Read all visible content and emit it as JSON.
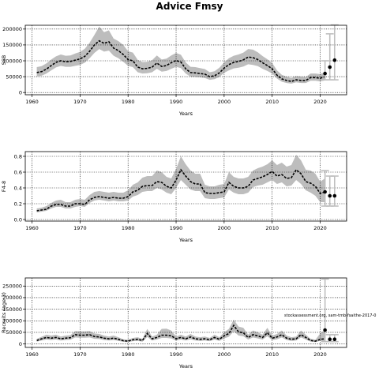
{
  "title": "Advice Fmsy",
  "credit": "stockassessment.org, sam-tmb-fsaithe-2017-0",
  "colors": {
    "band": "#bdbdbd",
    "line": "#000000",
    "advice": "#bfbfbf"
  },
  "chart_data": [
    {
      "type": "line",
      "name": "ssb-panel",
      "ylabel": "SSB",
      "xlabel": "Years",
      "xlim": [
        1958.6,
        2025.5
      ],
      "ylim": [
        -7000,
        212000
      ],
      "xticks": [
        1960,
        1970,
        1980,
        1990,
        2000,
        2010,
        2020
      ],
      "yticks": [
        0,
        50000,
        100000,
        150000,
        200000
      ],
      "ytick_labels": [
        "0",
        "50000",
        "100000",
        "150000",
        "200000"
      ],
      "grid": true,
      "series": {
        "x": [
          1961,
          1962,
          1963,
          1964,
          1965,
          1966,
          1967,
          1968,
          1969,
          1970,
          1971,
          1972,
          1973,
          1974,
          1975,
          1976,
          1977,
          1978,
          1979,
          1980,
          1981,
          1982,
          1983,
          1984,
          1985,
          1986,
          1987,
          1988,
          1989,
          1990,
          1991,
          1992,
          1993,
          1994,
          1995,
          1996,
          1997,
          1998,
          1999,
          2000,
          2001,
          2002,
          2003,
          2004,
          2005,
          2006,
          2007,
          2008,
          2009,
          2010,
          2011,
          2012,
          2013,
          2014,
          2015,
          2016,
          2017,
          2018,
          2019,
          2020,
          2021
        ],
        "y": [
          63000,
          66000,
          74000,
          85000,
          95000,
          100000,
          97000,
          98000,
          102000,
          106000,
          114000,
          130000,
          150000,
          163000,
          155000,
          160000,
          140000,
          132000,
          120000,
          104000,
          100000,
          80000,
          75000,
          76000,
          80000,
          93000,
          82000,
          85000,
          94000,
          101000,
          96000,
          75000,
          63000,
          62000,
          60000,
          58000,
          50000,
          53000,
          62000,
          77000,
          88000,
          95000,
          98000,
          103000,
          112000,
          110000,
          104000,
          94000,
          85000,
          75000,
          55000,
          43000,
          38000,
          35000,
          40000,
          38000,
          38000,
          47000,
          47000,
          45000,
          50000
        ],
        "lower": [
          51000,
          53000,
          60000,
          70000,
          79000,
          84000,
          81000,
          81000,
          84000,
          87000,
          94000,
          108000,
          125000,
          137000,
          129000,
          132000,
          116000,
          108000,
          97000,
          84000,
          80000,
          64000,
          60000,
          61000,
          64000,
          75000,
          66000,
          68000,
          75000,
          81000,
          77000,
          60000,
          50000,
          49000,
          48000,
          46000,
          40000,
          42000,
          49000,
          62000,
          70000,
          76000,
          78000,
          82000,
          89000,
          87000,
          83000,
          75000,
          68000,
          60000,
          44000,
          34000,
          30000,
          28000,
          32000,
          30000,
          30000,
          37000,
          37000,
          35000,
          38000
        ],
        "upper": [
          80000,
          83000,
          92000,
          104000,
          114000,
          120000,
          116000,
          117000,
          123000,
          128000,
          138000,
          157000,
          182000,
          208000,
          190000,
          196000,
          170000,
          162000,
          150000,
          130000,
          126000,
          103000,
          96000,
          97000,
          102000,
          117000,
          104000,
          107000,
          117000,
          125000,
          119000,
          95000,
          81000,
          80000,
          77000,
          74000,
          64000,
          67000,
          78000,
          95000,
          108000,
          116000,
          120000,
          126000,
          137000,
          135000,
          127000,
          115000,
          105000,
          93000,
          70000,
          56000,
          50000,
          46000,
          52000,
          50000,
          49000,
          60000,
          60000,
          58000,
          64000
        ]
      },
      "advice": [
        {
          "x": 2021,
          "y": 60000,
          "lower": 40000,
          "upper": 100000
        },
        {
          "x": 2022,
          "y": 80000,
          "lower": 40000,
          "upper": 185000
        },
        {
          "x": 2023,
          "y": 102000,
          "lower": 40000,
          "upper": 213000
        }
      ]
    },
    {
      "type": "line",
      "name": "f-panel",
      "ylabel": "F4-8",
      "xlabel": "Years",
      "xlim": [
        1958.6,
        2025.5
      ],
      "ylim": [
        -0.02,
        0.86
      ],
      "xticks": [
        1960,
        1970,
        1980,
        1990,
        2000,
        2010,
        2020
      ],
      "yticks": [
        0,
        0.2,
        0.4,
        0.6,
        0.8
      ],
      "ytick_labels": [
        "0.0",
        "0.2",
        "0.4",
        "0.6",
        "0.8"
      ],
      "grid": true,
      "series": {
        "x": [
          1961,
          1962,
          1963,
          1964,
          1965,
          1966,
          1967,
          1968,
          1969,
          1970,
          1971,
          1972,
          1973,
          1974,
          1975,
          1976,
          1977,
          1978,
          1979,
          1980,
          1981,
          1982,
          1983,
          1984,
          1985,
          1986,
          1987,
          1988,
          1989,
          1990,
          1991,
          1992,
          1993,
          1994,
          1995,
          1996,
          1997,
          1998,
          1999,
          2000,
          2001,
          2002,
          2003,
          2004,
          2005,
          2006,
          2007,
          2008,
          2009,
          2010,
          2011,
          2012,
          2013,
          2014,
          2015,
          2016,
          2017,
          2018,
          2019,
          2020,
          2021
        ],
        "y": [
          0.11,
          0.12,
          0.13,
          0.17,
          0.19,
          0.19,
          0.17,
          0.17,
          0.2,
          0.2,
          0.19,
          0.25,
          0.28,
          0.29,
          0.28,
          0.27,
          0.28,
          0.27,
          0.27,
          0.29,
          0.35,
          0.37,
          0.42,
          0.43,
          0.43,
          0.48,
          0.47,
          0.42,
          0.4,
          0.5,
          0.63,
          0.55,
          0.48,
          0.45,
          0.45,
          0.34,
          0.33,
          0.33,
          0.34,
          0.35,
          0.47,
          0.42,
          0.4,
          0.4,
          0.42,
          0.5,
          0.52,
          0.54,
          0.57,
          0.61,
          0.55,
          0.57,
          0.52,
          0.53,
          0.63,
          0.58,
          0.48,
          0.46,
          0.42,
          0.33,
          0.35
        ],
        "lower": [
          0.09,
          0.1,
          0.11,
          0.14,
          0.16,
          0.16,
          0.14,
          0.14,
          0.16,
          0.17,
          0.16,
          0.21,
          0.24,
          0.25,
          0.24,
          0.23,
          0.24,
          0.23,
          0.23,
          0.24,
          0.29,
          0.31,
          0.35,
          0.36,
          0.36,
          0.4,
          0.38,
          0.34,
          0.32,
          0.4,
          0.5,
          0.44,
          0.38,
          0.36,
          0.36,
          0.27,
          0.26,
          0.26,
          0.27,
          0.28,
          0.38,
          0.34,
          0.32,
          0.32,
          0.34,
          0.41,
          0.43,
          0.44,
          0.47,
          0.5,
          0.45,
          0.47,
          0.42,
          0.43,
          0.5,
          0.45,
          0.37,
          0.34,
          0.3,
          0.22,
          0.22
        ],
        "upper": [
          0.14,
          0.15,
          0.17,
          0.21,
          0.24,
          0.25,
          0.22,
          0.22,
          0.25,
          0.26,
          0.25,
          0.31,
          0.35,
          0.36,
          0.35,
          0.34,
          0.35,
          0.34,
          0.34,
          0.37,
          0.44,
          0.47,
          0.53,
          0.55,
          0.55,
          0.62,
          0.6,
          0.54,
          0.52,
          0.64,
          0.8,
          0.7,
          0.62,
          0.58,
          0.58,
          0.44,
          0.42,
          0.42,
          0.44,
          0.45,
          0.6,
          0.54,
          0.52,
          0.52,
          0.54,
          0.62,
          0.65,
          0.67,
          0.7,
          0.75,
          0.69,
          0.72,
          0.67,
          0.69,
          0.82,
          0.75,
          0.63,
          0.62,
          0.58,
          0.48,
          0.52
        ]
      },
      "advice": [
        {
          "x": 2021,
          "y": 0.35,
          "lower": 0.17,
          "upper": 0.62
        },
        {
          "x": 2022,
          "y": 0.3,
          "lower": 0.17,
          "upper": 0.55
        },
        {
          "x": 2023,
          "y": 0.3,
          "lower": 0.17,
          "upper": 0.55
        }
      ]
    },
    {
      "type": "line",
      "name": "recruits-panel",
      "ylabel": "Recruits (age 3)",
      "xlabel": "Years",
      "xlim": [
        1958.6,
        2025.5
      ],
      "ylim": [
        -15000,
        285000
      ],
      "xticks": [
        1960,
        1970,
        1980,
        1990,
        2000,
        2010,
        2020
      ],
      "yticks": [
        0,
        50000,
        100000,
        150000,
        200000,
        250000
      ],
      "ytick_labels": [
        "0",
        "50000",
        "100000",
        "150000",
        "200000",
        "250000"
      ],
      "grid": true,
      "series": {
        "x": [
          1961,
          1962,
          1963,
          1964,
          1965,
          1966,
          1967,
          1968,
          1969,
          1970,
          1971,
          1972,
          1973,
          1974,
          1975,
          1976,
          1977,
          1978,
          1979,
          1980,
          1981,
          1982,
          1983,
          1984,
          1985,
          1986,
          1987,
          1988,
          1989,
          1990,
          1991,
          1992,
          1993,
          1994,
          1995,
          1996,
          1997,
          1998,
          1999,
          2000,
          2001,
          2002,
          2003,
          2004,
          2005,
          2006,
          2007,
          2008,
          2009,
          2010,
          2011,
          2012,
          2013,
          2014,
          2015,
          2016,
          2017,
          2018,
          2019,
          2020,
          2021
        ],
        "y": [
          15000,
          22000,
          28000,
          25000,
          28000,
          22000,
          25000,
          27000,
          40000,
          38000,
          38000,
          40000,
          32000,
          30000,
          25000,
          22000,
          25000,
          20000,
          14000,
          12000,
          18000,
          20000,
          15000,
          45000,
          22000,
          28000,
          38000,
          38000,
          35000,
          22000,
          28000,
          22000,
          30000,
          22000,
          20000,
          22000,
          18000,
          28000,
          20000,
          35000,
          45000,
          80000,
          52000,
          48000,
          28000,
          40000,
          35000,
          28000,
          48000,
          25000,
          30000,
          40000,
          25000,
          20000,
          22000,
          40000,
          28000,
          15000,
          12000,
          20000,
          22000
        ],
        "lower": [
          10000,
          15000,
          19000,
          17000,
          19000,
          15000,
          17000,
          18000,
          28000,
          27000,
          27000,
          28000,
          22000,
          21000,
          17000,
          15000,
          17000,
          13000,
          9000,
          8000,
          12000,
          13000,
          10000,
          30000,
          15000,
          19000,
          26000,
          26000,
          24000,
          15000,
          19000,
          15000,
          20000,
          15000,
          13000,
          15000,
          12000,
          19000,
          13000,
          24000,
          31000,
          55000,
          36000,
          33000,
          19000,
          28000,
          24000,
          19000,
          33000,
          17000,
          20000,
          28000,
          17000,
          13000,
          15000,
          28000,
          19000,
          10000,
          8000,
          13000,
          12000
        ],
        "upper": [
          22000,
          31000,
          40000,
          36000,
          40000,
          32000,
          36000,
          38000,
          56000,
          54000,
          54000,
          56000,
          45000,
          43000,
          36000,
          32000,
          36000,
          29000,
          20000,
          18000,
          26000,
          29000,
          22000,
          65000,
          32000,
          40000,
          65000,
          66000,
          58000,
          32000,
          40000,
          32000,
          43000,
          32000,
          29000,
          32000,
          26000,
          40000,
          29000,
          50000,
          65000,
          105000,
          75000,
          70000,
          40000,
          58000,
          50000,
          40000,
          70000,
          36000,
          43000,
          58000,
          36000,
          29000,
          32000,
          58000,
          40000,
          22000,
          18000,
          45000,
          60000
        ]
      },
      "advice": [
        {
          "x": 2021,
          "y": 60000,
          "lower": 10000,
          "upper": 280000
        },
        {
          "x": 2022,
          "y": 20000,
          "lower": 10000,
          "upper": 40000
        },
        {
          "x": 2023,
          "y": 20000,
          "lower": 10000,
          "upper": 40000
        }
      ]
    }
  ]
}
